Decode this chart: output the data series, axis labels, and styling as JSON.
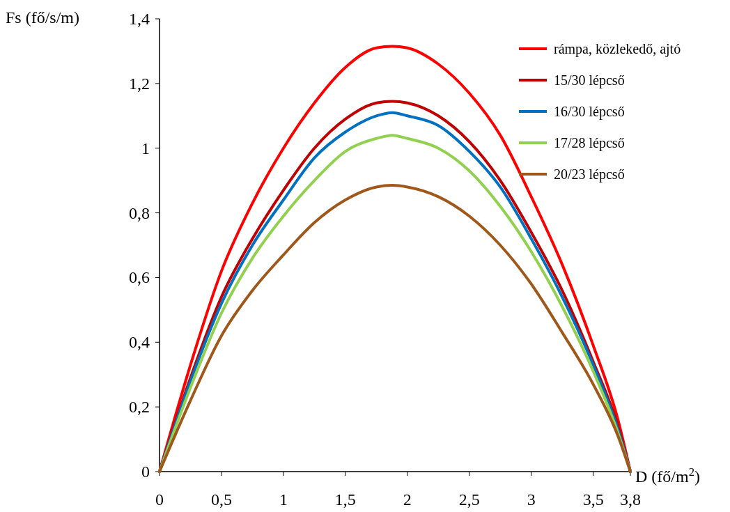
{
  "chart_data": {
    "type": "line",
    "xlabel": "D (fő/m$^{2}$)",
    "ylabel": "Fs (fő/s/m)",
    "x": [
      0,
      0.25,
      0.5,
      0.75,
      1,
      1.25,
      1.5,
      1.75,
      1.88,
      2,
      2.25,
      2.5,
      2.75,
      3,
      3.25,
      3.5,
      3.7,
      3.8
    ],
    "xlim": [
      0,
      3.8
    ],
    "xticks": [
      {
        "value": 0,
        "label": "0"
      },
      {
        "value": 0.5,
        "label": "0,5"
      },
      {
        "value": 1,
        "label": "1"
      },
      {
        "value": 1.5,
        "label": "1,5"
      },
      {
        "value": 2,
        "label": "2"
      },
      {
        "value": 2.5,
        "label": "2,5"
      },
      {
        "value": 3,
        "label": "3"
      },
      {
        "value": 3.5,
        "label": "3,5"
      },
      {
        "value": 3.8,
        "label": "3,8"
      }
    ],
    "ylim": [
      0,
      1.4
    ],
    "yticks": [
      {
        "value": 0,
        "label": "0"
      },
      {
        "value": 0.2,
        "label": "0,2"
      },
      {
        "value": 0.4,
        "label": "0,4"
      },
      {
        "value": 0.6,
        "label": "0,6"
      },
      {
        "value": 0.8,
        "label": "0,8"
      },
      {
        "value": 1,
        "label": "1"
      },
      {
        "value": 1.2,
        "label": "1,2"
      },
      {
        "value": 1.4,
        "label": "1,4"
      }
    ],
    "grid": false,
    "legend": "top right",
    "marker": "none",
    "line_style": "solid",
    "series": [
      {
        "name": "rámpa, közlekedő, ajtó",
        "color": "#ff0000",
        "values": [
          0,
          0.33,
          0.62,
          0.83,
          1.0,
          1.14,
          1.25,
          1.31,
          1.315,
          1.31,
          1.26,
          1.17,
          1.04,
          0.85,
          0.64,
          0.39,
          0.16,
          0
        ]
      },
      {
        "name": "15/30 lépcső",
        "color": "#c00000",
        "values": [
          0,
          0.29,
          0.54,
          0.72,
          0.87,
          1.0,
          1.09,
          1.14,
          1.145,
          1.14,
          1.1,
          1.02,
          0.9,
          0.74,
          0.56,
          0.34,
          0.14,
          0
        ]
      },
      {
        "name": "16/30 lépcső",
        "color": "#0070c0",
        "values": [
          0,
          0.28,
          0.52,
          0.7,
          0.84,
          0.97,
          1.05,
          1.1,
          1.11,
          1.1,
          1.07,
          0.99,
          0.88,
          0.72,
          0.54,
          0.33,
          0.13,
          0
        ]
      },
      {
        "name": "17/28 lépcső",
        "color": "#92d050",
        "values": [
          0,
          0.26,
          0.49,
          0.66,
          0.79,
          0.9,
          0.99,
          1.03,
          1.04,
          1.03,
          1.0,
          0.93,
          0.82,
          0.68,
          0.51,
          0.31,
          0.12,
          0
        ]
      },
      {
        "name": "20/23 lépcső",
        "color": "#a0581a",
        "values": [
          0,
          0.22,
          0.42,
          0.56,
          0.67,
          0.77,
          0.84,
          0.88,
          0.885,
          0.88,
          0.85,
          0.79,
          0.7,
          0.58,
          0.43,
          0.27,
          0.11,
          0
        ]
      }
    ]
  }
}
